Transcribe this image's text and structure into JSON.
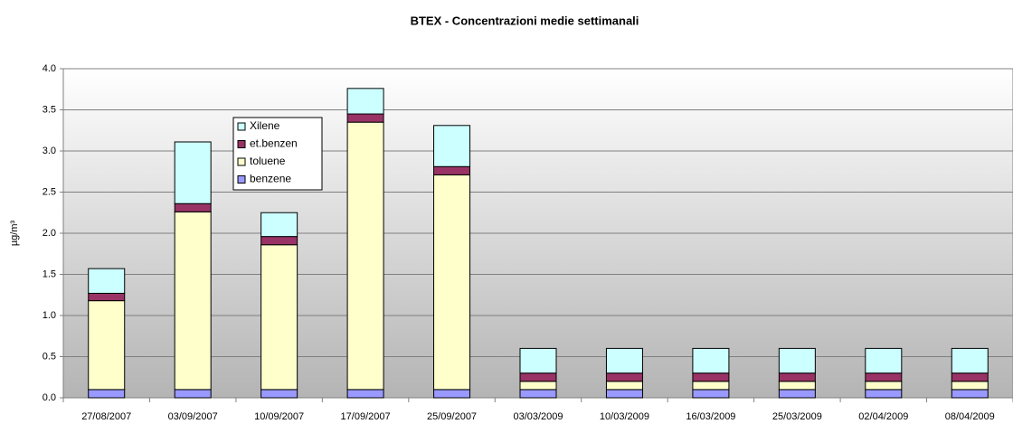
{
  "chart_data": {
    "type": "stacked_bar",
    "title": "BTEX - Concentrazioni medie settimanali",
    "y_label": "µg/m³",
    "categories": [
      "27/08/2007",
      "03/09/2007",
      "10/09/2007",
      "17/09/2007",
      "25/09/2007",
      "03/03/2009",
      "10/03/2009",
      "16/03/2009",
      "25/03/2009",
      "02/04/2009",
      "08/04/2009"
    ],
    "series": [
      {
        "name": "benzene",
        "color": "#9999ff",
        "values": [
          0.1,
          0.1,
          0.1,
          0.1,
          0.1,
          0.1,
          0.1,
          0.1,
          0.1,
          0.1,
          0.1
        ]
      },
      {
        "name": "toluene",
        "color": "#ffffcc",
        "values": [
          1.08,
          2.16,
          1.76,
          3.25,
          2.61,
          0.1,
          0.1,
          0.1,
          0.1,
          0.1,
          0.1
        ]
      },
      {
        "name": "et.benzen",
        "color": "#993366",
        "values": [
          0.09,
          0.1,
          0.1,
          0.1,
          0.1,
          0.1,
          0.1,
          0.1,
          0.1,
          0.1,
          0.1
        ]
      },
      {
        "name": "Xilene",
        "color": "#ccffff",
        "values": [
          0.3,
          0.75,
          0.29,
          0.31,
          0.5,
          0.3,
          0.3,
          0.3,
          0.3,
          0.3,
          0.3
        ]
      }
    ],
    "ylim": [
      0,
      4
    ],
    "yticks": [
      {
        "value": 0,
        "label": "0.0"
      },
      0.5,
      {
        "value": 1,
        "label": "1.0"
      },
      1.5,
      {
        "value": 2,
        "label": "2.0"
      },
      2.5,
      {
        "value": 3,
        "label": "3.0"
      },
      3.5,
      {
        "value": 4,
        "label": "4.0"
      }
    ],
    "grid": true
  }
}
